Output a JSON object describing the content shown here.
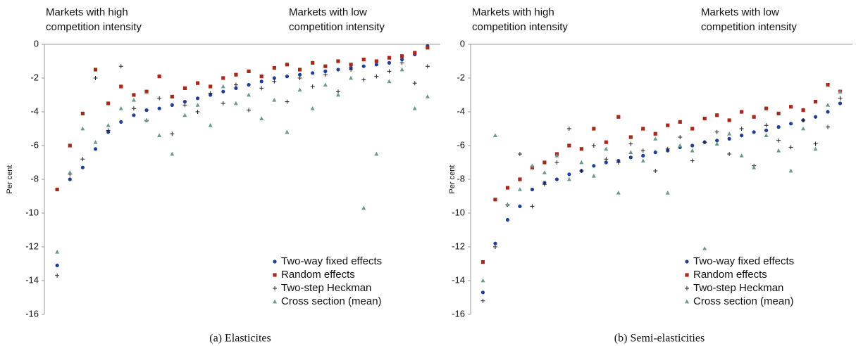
{
  "chart_data": [
    {
      "type": "scatter",
      "annotation_left": [
        "Markets with high",
        "competition intensity"
      ],
      "annotation_right": [
        "Markets with low",
        "competition intensity"
      ],
      "y_label": "Per cent",
      "caption": "(a)  Elasticites",
      "x": [
        1,
        2,
        3,
        4,
        5,
        6,
        7,
        8,
        9,
        10,
        11,
        12,
        13,
        14,
        15,
        16,
        17,
        18,
        19,
        20,
        21,
        22,
        23,
        24,
        25,
        26,
        27,
        28,
        29,
        30
      ],
      "xlim": [
        0,
        31
      ],
      "ylim": [
        -16,
        0
      ],
      "yticks": [
        0,
        -2,
        -4,
        -6,
        -8,
        -10,
        -12,
        -14,
        -16
      ],
      "legend": "lower right",
      "series": [
        {
          "name": "Two-way fixed effects",
          "color": "#1f3f99",
          "marker": "circle",
          "values": [
            -13.1,
            -8,
            -7.3,
            -6.2,
            -5.2,
            -4.6,
            -4.2,
            -3.9,
            -3.8,
            -3.6,
            -3.4,
            -3.2,
            -3.0,
            -2.8,
            -2.6,
            -2.4,
            -2.2,
            -2.0,
            -1.9,
            -1.8,
            -1.7,
            -1.6,
            -1.5,
            -1.4,
            -1.3,
            -1.2,
            -1.1,
            -0.9,
            -0.6,
            -0.1
          ]
        },
        {
          "name": "Random effects",
          "color": "#a52a1a",
          "marker": "square",
          "values": [
            -8.6,
            -6,
            -4.1,
            -1.5,
            -3.5,
            -2.5,
            -3.0,
            -2.8,
            -1.9,
            -3.1,
            -2.6,
            -2.3,
            -2.5,
            -2.0,
            -1.8,
            -1.6,
            -1.9,
            -1.4,
            -1.2,
            -1.5,
            -1.1,
            -1.3,
            -1.0,
            -1.2,
            -0.9,
            -1.0,
            -0.8,
            -0.7,
            -0.5,
            -0.2
          ]
        },
        {
          "name": "Two-step Heckman",
          "color": "#222222",
          "marker": "plus",
          "values": [
            -13.7,
            -7.7,
            -6.8,
            -2.0,
            -5.1,
            -1.3,
            -3.8,
            -4.5,
            -3.2,
            -5.3,
            -3.6,
            -4.0,
            -2.9,
            -3.5,
            -2.4,
            -3.9,
            -2.6,
            -2.2,
            -3.4,
            -2.0,
            -2.5,
            -1.8,
            -2.8,
            -1.5,
            -2.1,
            -1.9,
            -1.6,
            -1.1,
            -2.3,
            -1.3
          ]
        },
        {
          "name": "Cross section (mean)",
          "color": "#6a9a8a",
          "marker": "triangle",
          "values": [
            -12.3,
            -7.6,
            -5.0,
            -5.8,
            -4.8,
            -3.8,
            -3.3,
            -4.5,
            -5.4,
            -6.5,
            -4.2,
            -3.6,
            -4.8,
            -2.5,
            -3.5,
            -3.0,
            -4.4,
            -3.3,
            -5.2,
            -2.7,
            -3.8,
            -2.4,
            -3.0,
            -2.0,
            -9.7,
            -6.5,
            -2.2,
            -1.5,
            -3.8,
            -3.1
          ]
        }
      ]
    },
    {
      "type": "scatter",
      "annotation_left": [
        "Markets with high",
        "competition intensity"
      ],
      "annotation_right": [
        "Markets with low",
        "competition intensity"
      ],
      "y_label": "Per cent",
      "caption": "(b)  Semi-elasticities",
      "x": [
        1,
        2,
        3,
        4,
        5,
        6,
        7,
        8,
        9,
        10,
        11,
        12,
        13,
        14,
        15,
        16,
        17,
        18,
        19,
        20,
        21,
        22,
        23,
        24,
        25,
        26,
        27,
        28,
        29,
        30
      ],
      "xlim": [
        0,
        31
      ],
      "ylim": [
        -16,
        0
      ],
      "yticks": [
        0,
        -2,
        -4,
        -6,
        -8,
        -10,
        -12,
        -14,
        -16
      ],
      "legend": "lower right",
      "series": [
        {
          "name": "Two-way fixed effects",
          "color": "#1f3f99",
          "marker": "circle",
          "values": [
            -14.7,
            -11.8,
            -10.4,
            -9.6,
            -8.6,
            -8.2,
            -8.0,
            -7.7,
            -7.5,
            -7.2,
            -7.0,
            -6.9,
            -6.7,
            -6.6,
            -6.4,
            -6.3,
            -6.1,
            -6.0,
            -5.8,
            -5.7,
            -5.6,
            -5.4,
            -5.2,
            -5.1,
            -4.9,
            -4.7,
            -4.5,
            -4.3,
            -4.0,
            -3.5
          ]
        },
        {
          "name": "Random effects",
          "color": "#a52a1a",
          "marker": "square",
          "values": [
            -12.9,
            -9.2,
            -8.5,
            -8.0,
            -7.3,
            -7.0,
            -6.5,
            -6.0,
            -6.2,
            -5.0,
            -5.8,
            -4.3,
            -5.5,
            -5.0,
            -5.3,
            -4.8,
            -4.6,
            -5.0,
            -4.4,
            -4.2,
            -4.5,
            -4.0,
            -4.3,
            -3.8,
            -4.1,
            -3.7,
            -3.9,
            -3.4,
            -2.4,
            -2.8
          ]
        },
        {
          "name": "Two-step Heckman",
          "color": "#222222",
          "marker": "plus",
          "values": [
            -15.2,
            -12.0,
            -9.5,
            -6.5,
            -9.6,
            -8.3,
            -7.0,
            -5.0,
            -7.5,
            -6.0,
            -6.8,
            -7.0,
            -5.9,
            -6.3,
            -7.5,
            -6.2,
            -5.5,
            -6.9,
            -5.8,
            -5.2,
            -6.5,
            -5.0,
            -7.2,
            -4.8,
            -5.7,
            -6.1,
            -4.5,
            -5.9,
            -4.9,
            -3.2
          ]
        },
        {
          "name": "Cross section (mean)",
          "color": "#6a9a8a",
          "marker": "triangle",
          "values": [
            -14.0,
            -5.4,
            -9.5,
            -8.6,
            -7.2,
            -7.6,
            -6.6,
            -8.0,
            -7.0,
            -7.8,
            -6.2,
            -8.8,
            -6.4,
            -6.9,
            -5.6,
            -8.8,
            -6.0,
            -6.3,
            -12.1,
            -5.9,
            -5.3,
            -6.6,
            -7.3,
            -5.4,
            -6.3,
            -7.5,
            -5.0,
            -6.2,
            -3.6,
            -2.8
          ]
        }
      ]
    }
  ]
}
